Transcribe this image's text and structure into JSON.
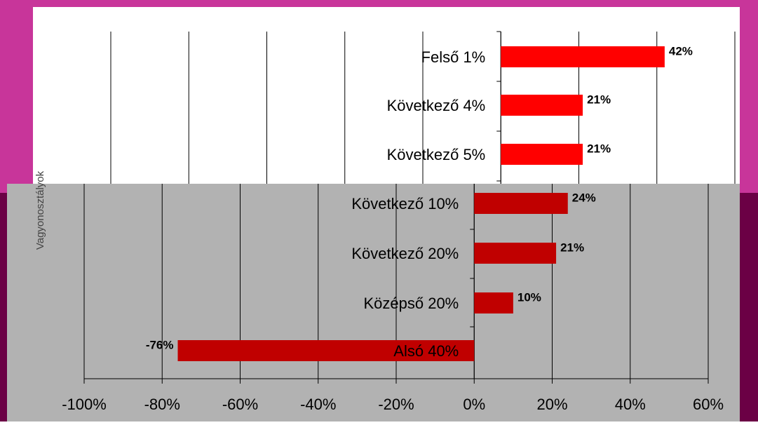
{
  "chart_data": {
    "type": "hbar",
    "y_label": "Vagyonosztályok",
    "categories": [
      "Felső 1%",
      "Következő 4%",
      "Következő 5%",
      "Következő 10%",
      "Következő 20%",
      "Középső 20%",
      "Alsó 40%"
    ],
    "values": [
      42,
      21,
      21,
      24,
      21,
      10,
      -76
    ],
    "value_labels": [
      "42%",
      "21%",
      "21%",
      "24%",
      "21%",
      "10%",
      "-76%"
    ],
    "colors": [
      "#ff0000",
      "#ff0000",
      "#ff0000",
      "#c00000",
      "#c00000",
      "#c00000",
      "#c00000"
    ],
    "xlim": [
      -100,
      60
    ],
    "xticks": [
      {
        "value": -100,
        "label": "-100%"
      },
      {
        "value": -80,
        "label": "-80%"
      },
      {
        "value": -60,
        "label": "-60%"
      },
      {
        "value": -40,
        "label": "-40%"
      },
      {
        "value": -20,
        "label": "-20%"
      },
      {
        "value": 0,
        "label": "0%"
      },
      {
        "value": 20,
        "label": "20%"
      },
      {
        "value": 40,
        "label": "40%"
      },
      {
        "value": 60,
        "label": "60%"
      }
    ],
    "grid": true
  }
}
